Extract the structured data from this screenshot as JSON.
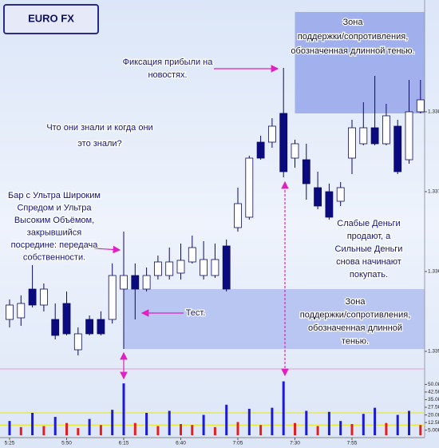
{
  "chart_data": {
    "type": "candlestick",
    "title": "EURO FX",
    "categories": [
      "5:25",
      null,
      null,
      null,
      null,
      "5:50",
      null,
      null,
      null,
      null,
      "6:15",
      null,
      null,
      null,
      null,
      "6:40",
      null,
      null,
      null,
      null,
      "7:05",
      null,
      null,
      null,
      null,
      "7:30",
      null,
      null,
      null,
      null,
      "7:55",
      null,
      null,
      null,
      null,
      null,
      null
    ],
    "ohlc": {
      "open": [
        1.3354,
        1.33542,
        1.33578,
        1.33558,
        1.3354,
        1.3356,
        1.33502,
        1.3354,
        1.3354,
        1.3354,
        1.33578,
        1.33595,
        1.33578,
        1.33595,
        1.33595,
        1.33598,
        1.33612,
        1.33595,
        1.33595,
        1.33632,
        1.33655,
        1.33668,
        1.33762,
        1.33762,
        1.33798,
        1.33742,
        1.3374,
        1.33705,
        1.337,
        1.33688,
        1.33742,
        1.3376,
        1.3378,
        1.3376,
        1.33782,
        1.3374,
        1.338
      ],
      "high": [
        1.33565,
        1.3357,
        1.33608,
        1.33585,
        1.3356,
        1.33575,
        1.3353,
        1.33545,
        1.3355,
        1.3361,
        1.3365,
        1.3361,
        1.33605,
        1.3362,
        1.3363,
        1.33635,
        1.33645,
        1.33638,
        1.33635,
        1.3364,
        1.33705,
        1.33745,
        1.3377,
        1.33792,
        1.33855,
        1.33765,
        1.3376,
        1.33725,
        1.3371,
        1.33712,
        1.3379,
        1.33812,
        1.33845,
        1.3381,
        1.3379,
        1.3384,
        1.3384
      ],
      "low": [
        1.3353,
        1.33532,
        1.33555,
        1.3355,
        1.33515,
        1.3352,
        1.33495,
        1.3352,
        1.3352,
        1.33535,
        1.33503,
        1.3354,
        1.33575,
        1.3359,
        1.3359,
        1.3359,
        1.3361,
        1.3359,
        1.33592,
        1.33575,
        1.3365,
        1.33665,
        1.3374,
        1.33755,
        1.33718,
        1.3373,
        1.3369,
        1.33678,
        1.33665,
        1.33682,
        1.33722,
        1.33758,
        1.33758,
        1.33758,
        1.33722,
        1.33735,
        1.33798
      ],
      "close": [
        1.33558,
        1.3356,
        1.33558,
        1.33578,
        1.3352,
        1.33522,
        1.33522,
        1.33522,
        1.33522,
        1.33595,
        1.33595,
        1.33578,
        1.33595,
        1.33612,
        1.33612,
        1.33614,
        1.3363,
        1.33615,
        1.33615,
        1.33578,
        1.33685,
        1.33742,
        1.33742,
        1.33782,
        1.33725,
        1.3376,
        1.3371,
        1.33682,
        1.33668,
        1.33705,
        1.3378,
        1.3378,
        1.3376,
        1.33795,
        1.33725,
        1.338,
        1.33815
      ]
    },
    "up_color": "#ffffff",
    "down_color": "#0b0b80",
    "ylim": [
      1.3347,
      1.3393
    ],
    "yticks": [
      {
        "value": 1.335,
        "label": "1.335"
      },
      {
        "value": 1.336,
        "label": "1.336"
      },
      {
        "value": 1.337,
        "label": "1.337"
      },
      {
        "value": 1.338,
        "label": "1.338"
      }
    ],
    "zones": [
      {
        "start": 25,
        "from": 1.33925,
        "to": 1.33798,
        "color": "#8c9ee8"
      },
      {
        "start": 10,
        "from": 1.33578,
        "to": 1.33503,
        "color": "#a9b8ef"
      }
    ],
    "volume": {
      "values": [
        14,
        8,
        22,
        9,
        18,
        12,
        7,
        16,
        10,
        25,
        51,
        12,
        22,
        9,
        24,
        11,
        10,
        20,
        8,
        30,
        13,
        26,
        10,
        27,
        53,
        12,
        24,
        9,
        23,
        14,
        11,
        21,
        27,
        12,
        20,
        24,
        10
      ],
      "colors": [
        "#1a1ad8",
        "#e02020",
        "#1a1ad8",
        "#e02020",
        "#1a1ad8",
        "#e02020",
        "#e02020",
        "#1a1ad8",
        "#e02020",
        "#1a1ad8",
        "#1a1ad8",
        "#e02020",
        "#1a1ad8",
        "#e02020",
        "#1a1ad8",
        "#e02020",
        "#e02020",
        "#1a1ad8",
        "#e02020",
        "#1a1ad8",
        "#e02020",
        "#1a1ad8",
        "#e02020",
        "#1a1ad8",
        "#1a1ad8",
        "#e02020",
        "#1a1ad8",
        "#e02020",
        "#1a1ad8",
        "#1a1ad8",
        "#e02020",
        "#1a1ad8",
        "#1a1ad8",
        "#e02020",
        "#1a1ad8",
        "#1a1ad8",
        "#e02020"
      ],
      "ylim": [
        0,
        55
      ],
      "yticks": [
        {
          "value": 5,
          "label": "5.00k"
        },
        {
          "value": 12.5,
          "label": "12.5k"
        },
        {
          "value": 20,
          "label": "20.0k"
        },
        {
          "value": 27.5,
          "label": "27.5k"
        },
        {
          "value": 35,
          "label": "35.0k"
        },
        {
          "value": 42.5,
          "label": "42.5k"
        },
        {
          "value": 50,
          "label": "50.0k"
        }
      ],
      "lines": [
        {
          "value": 22,
          "color": "#e8e800"
        },
        {
          "value": 10,
          "color": "#e8e800"
        }
      ]
    },
    "annotations": {
      "upper_zone": [
        "Зона",
        "поддержки/сопротивления,",
        "обозначенная длинной тенью."
      ],
      "profit": [
        "Фиксация прибыли на",
        "новостях."
      ],
      "question": [
        "Что они знали и когда они",
        "это знали?"
      ],
      "bar": [
        "Бар с Ультра Широким",
        "Спредом и Ультра",
        "Высоким Объёмом,",
        "закрывшийся",
        "посредине: передача",
        "собственности."
      ],
      "test": [
        "Тест."
      ],
      "money": [
        "Слабые Деньги",
        "продают, а",
        "Сильные Деньги",
        "снова начинают",
        "покупать."
      ],
      "lower_zone": [
        "Зона",
        "поддержки/сопротивления,",
        "обозначенная длинной",
        "тенью."
      ]
    }
  }
}
